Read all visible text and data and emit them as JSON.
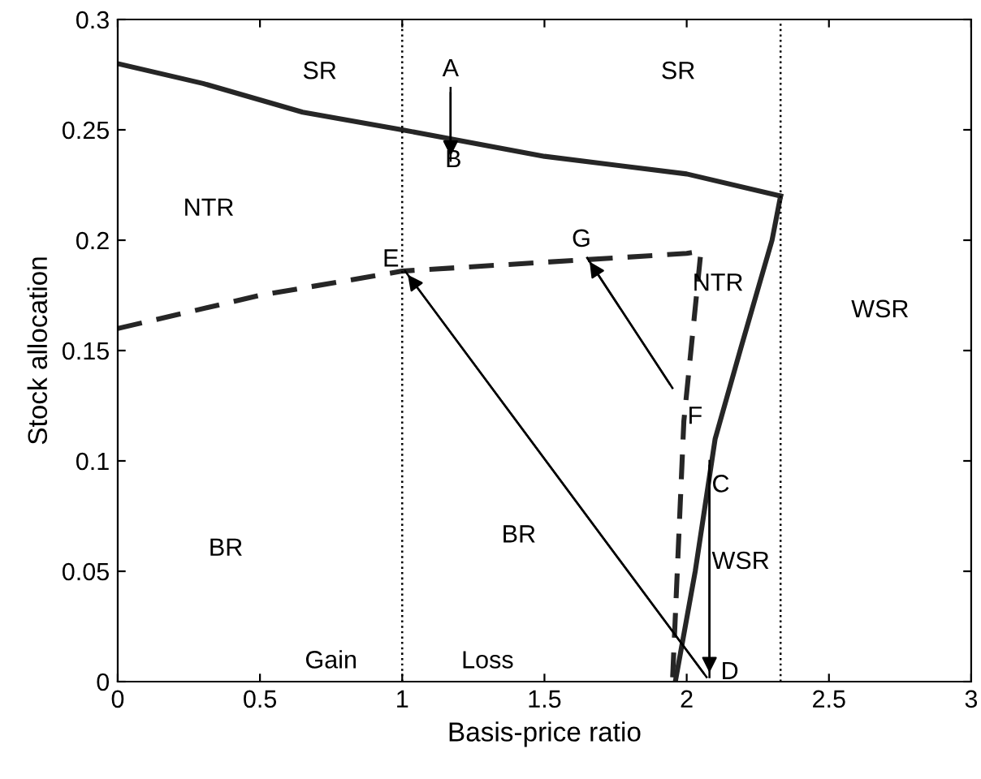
{
  "chart_data": {
    "type": "line",
    "xlabel": "Basis-price ratio",
    "ylabel": "Stock allocation",
    "xlim": [
      0,
      3
    ],
    "ylim": [
      0,
      0.3
    ],
    "xticks": [
      0,
      0.5,
      1,
      1.5,
      2,
      2.5,
      3
    ],
    "yticks": [
      0,
      0.05,
      0.1,
      0.15,
      0.2,
      0.25,
      0.3
    ],
    "grid": false,
    "legend": false,
    "series": [
      {
        "color": "#262626",
        "line_style": "solid",
        "x": [
          0,
          0.3,
          0.65,
          1,
          1.5,
          2,
          2.33
        ],
        "values": [
          0.28,
          0.271,
          0.258,
          0.25,
          0.238,
          0.23,
          0.22
        ]
      },
      {
        "color": "#262626",
        "line_style": "solid",
        "x": [
          2.33,
          2.3,
          2.19,
          2.1,
          2.03,
          1.96
        ],
        "values": [
          0.22,
          0.2,
          0.151,
          0.11,
          0.05,
          0
        ]
      },
      {
        "color": "#262626",
        "line_style": "dashed",
        "x": [
          0,
          0.5,
          1,
          1.5,
          2,
          2.05,
          1.99,
          1.95
        ],
        "values": [
          0.16,
          0.175,
          0.186,
          0.19,
          0.194,
          0.195,
          0.118,
          0
        ]
      },
      {
        "color": "#000000",
        "line_style": "solid",
        "x": [
          1.17,
          1.17
        ],
        "values": [
          0.269,
          0.236
        ]
      },
      {
        "color": "#000000",
        "line_style": "solid",
        "x": [
          2.07,
          1.01
        ],
        "values": [
          0.002,
          0.186
        ]
      },
      {
        "color": "#000000",
        "line_style": "solid",
        "x": [
          1.95,
          1.65
        ],
        "values": [
          0.133,
          0.192
        ]
      },
      {
        "color": "#000000",
        "line_style": "solid",
        "x": [
          2.08,
          2.08
        ],
        "values": [
          0.1,
          0.002
        ]
      }
    ],
    "ref_lines": [
      {
        "axis": "x",
        "value": 1,
        "line_style": "dotted",
        "color": "#000000"
      },
      {
        "axis": "x",
        "value": 2.33,
        "line_style": "dotted",
        "color": "#000000"
      }
    ],
    "annotations": [
      "SR",
      {
        "text": "A",
        "x": 1.17,
        "y": 0.269
      },
      "SR",
      "B",
      "NTR",
      "E",
      "G",
      "NTR",
      "WSR",
      {
        "text": "F",
        "x": 1.95,
        "y": 0.133
      },
      {
        "text": "C",
        "x": 2.08,
        "y": 0.1
      },
      "BR",
      "BR",
      "WSR",
      "Gain",
      "Loss",
      {
        "text": "D",
        "x": 2.08,
        "y": 0.002
      }
    ]
  }
}
